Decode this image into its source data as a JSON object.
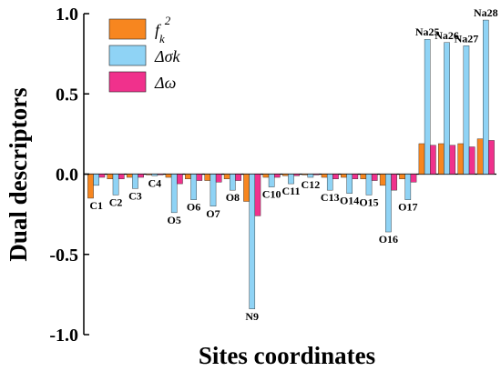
{
  "colors": {
    "fk2": "#F7861F",
    "dsk": "#8FD3F5",
    "dw": "#F0318C",
    "bar_stroke": "#222222"
  },
  "chart_data": {
    "type": "bar",
    "xlabel": "Sites coordinates",
    "ylabel": "Dual descriptors",
    "ylim": [
      -1.0,
      1.0
    ],
    "yticks": [
      "1.0",
      "0.5",
      "0.0",
      "-0.5",
      "-1.0"
    ],
    "ytick_values": [
      1.0,
      0.5,
      0.0,
      -0.5,
      -1.0
    ],
    "legend_position": "top-left",
    "legend": [
      {
        "key": "fk2",
        "prefix": "f",
        "sub": "k",
        "sup": "2"
      },
      {
        "key": "dsk",
        "label": "Δσk"
      },
      {
        "key": "dw",
        "label": "Δω"
      }
    ],
    "categories": [
      "C1",
      "C2",
      "C3",
      "C4",
      "O5",
      "O6",
      "O7",
      "O8",
      "N9",
      "C10",
      "C11",
      "C12",
      "C13",
      "O14",
      "O15",
      "O16",
      "O17",
      "Na25",
      "Na26",
      "Na27",
      "Na28"
    ],
    "label_side": [
      "below",
      "below",
      "below",
      "below",
      "below",
      "below",
      "below",
      "below",
      "below",
      "below",
      "below",
      "below",
      "below",
      "below",
      "below",
      "below",
      "below",
      "above",
      "above",
      "above",
      "above"
    ],
    "series": [
      {
        "key": "fk2",
        "values": [
          -0.15,
          -0.03,
          -0.02,
          -0.005,
          -0.02,
          -0.03,
          -0.04,
          -0.03,
          -0.17,
          -0.02,
          -0.01,
          -0.005,
          -0.02,
          -0.02,
          -0.03,
          -0.07,
          -0.03,
          0.19,
          0.19,
          0.19,
          0.22
        ]
      },
      {
        "key": "dsk",
        "values": [
          -0.07,
          -0.13,
          -0.09,
          -0.01,
          -0.24,
          -0.16,
          -0.2,
          -0.1,
          -0.84,
          -0.08,
          -0.06,
          -0.02,
          -0.1,
          -0.12,
          -0.13,
          -0.36,
          -0.16,
          0.84,
          0.82,
          0.8,
          0.96
        ]
      },
      {
        "key": "dw",
        "values": [
          -0.02,
          -0.03,
          -0.02,
          -0.005,
          -0.06,
          -0.04,
          -0.05,
          -0.04,
          -0.26,
          -0.02,
          -0.01,
          -0.005,
          -0.03,
          -0.03,
          -0.04,
          -0.1,
          -0.05,
          0.18,
          0.18,
          0.17,
          0.21
        ]
      }
    ]
  }
}
